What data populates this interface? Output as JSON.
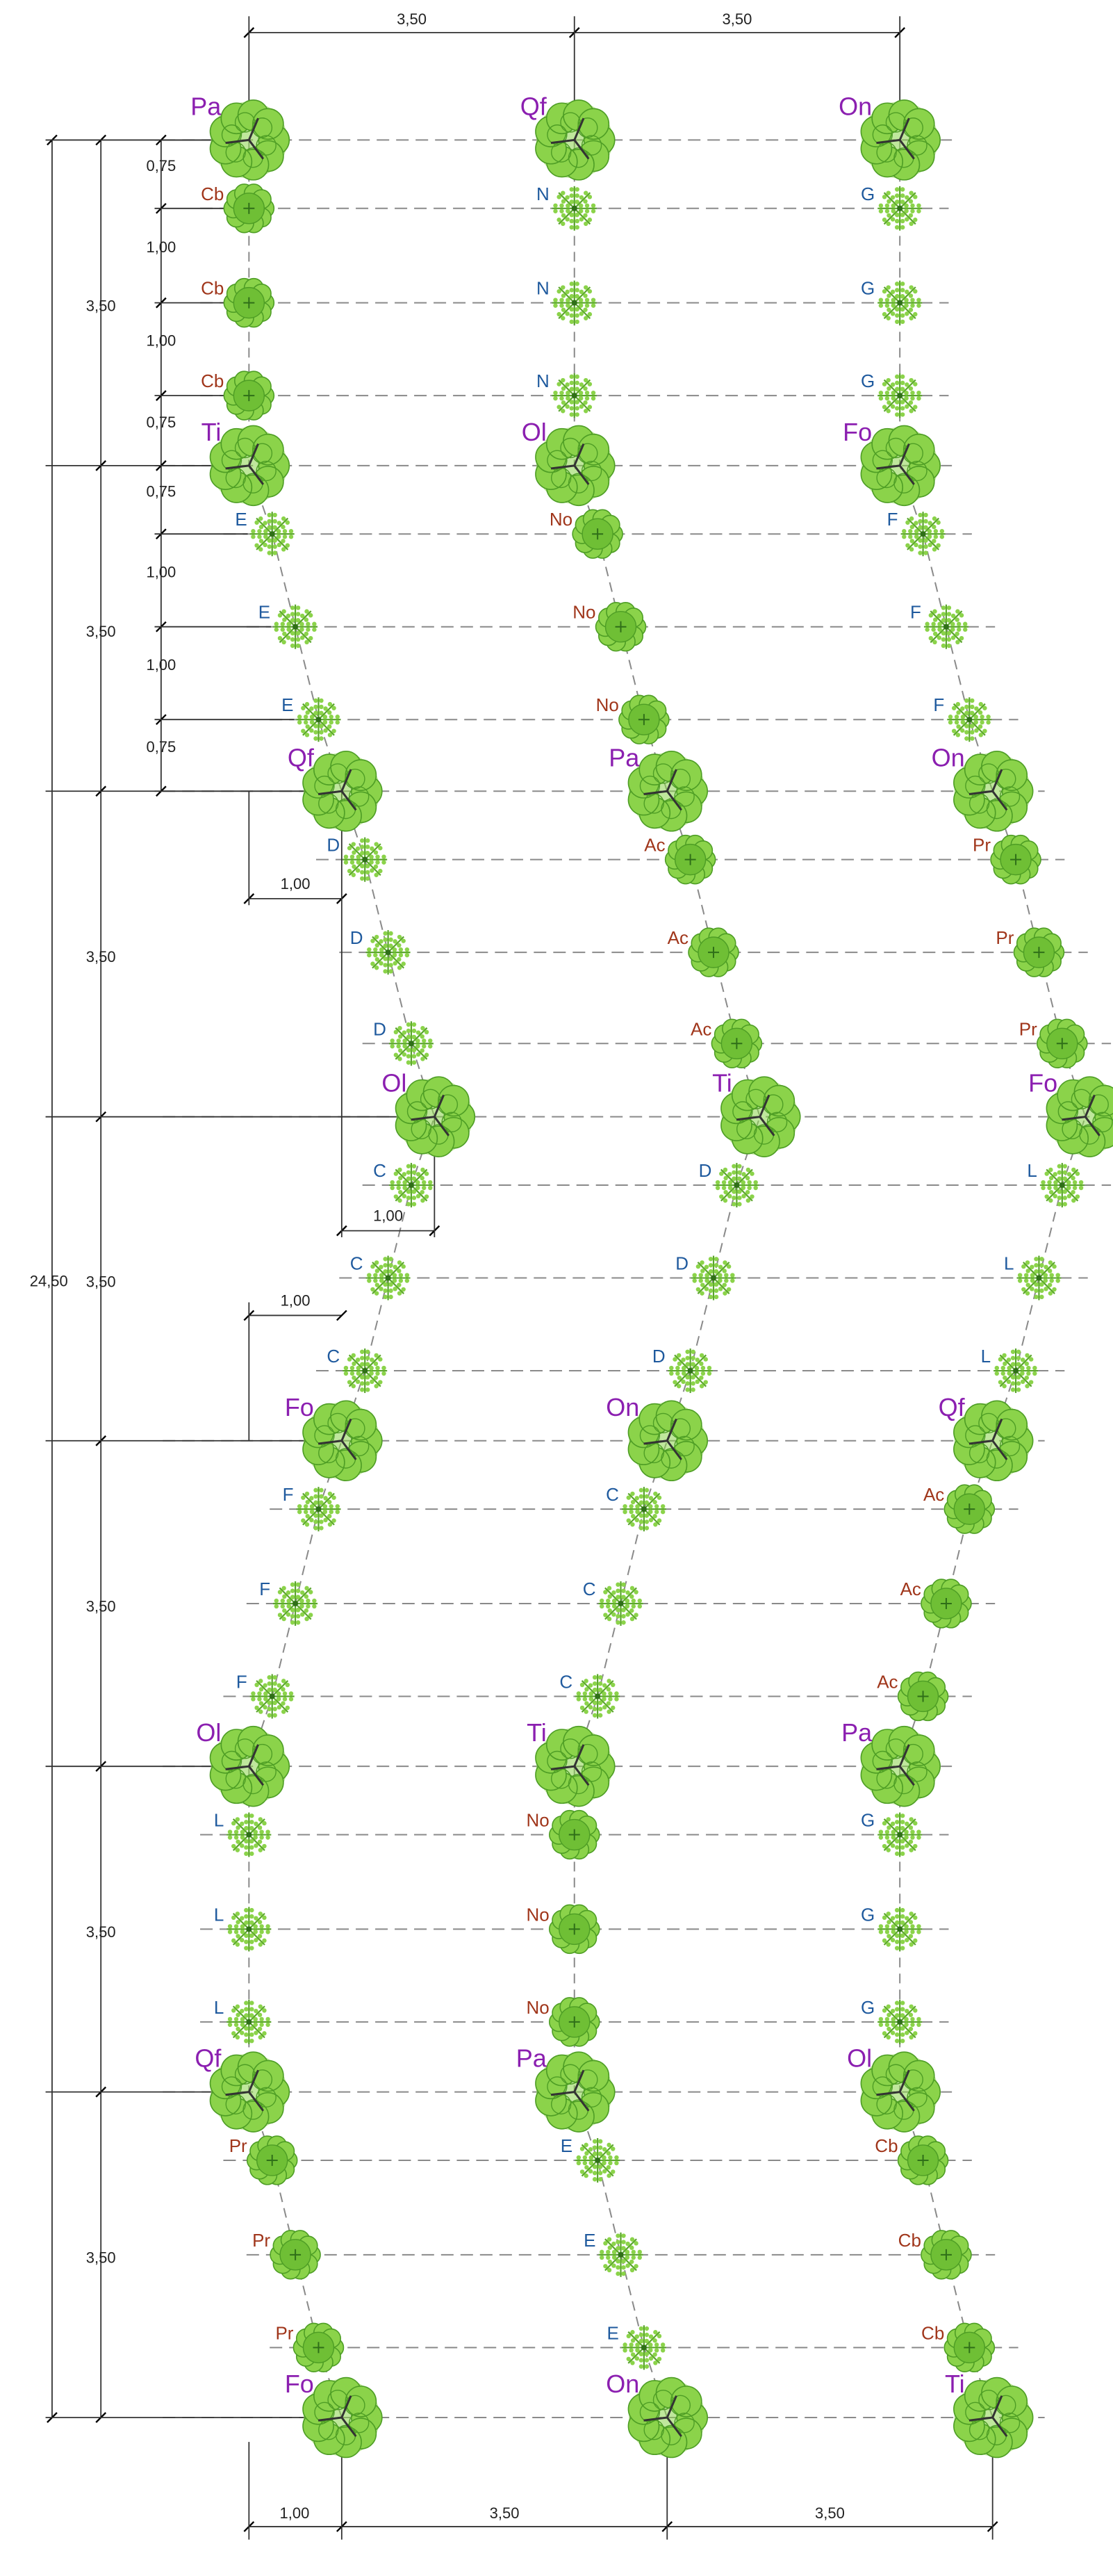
{
  "colors": {
    "big_label": "#8b1fb0",
    "small_blue": "#1f5a9e",
    "small_red": "#a0361b",
    "leaf": "#8bd34a",
    "leaf_dark": "#4e9e25",
    "dim": "#333333",
    "guide": "#8a8a8a"
  },
  "dimensions": {
    "top": [
      "3,50",
      "3,50"
    ],
    "bottom": [
      "1,00",
      "3,50",
      "3,50"
    ],
    "left_spacings": [
      "0,75",
      "1,00",
      "1,00",
      "0,75",
      "0,75",
      "1,00",
      "1,00",
      "0,75"
    ],
    "left_block": [
      "3,50",
      "3,50",
      "3,50",
      "3,50",
      "3,50",
      "3,50",
      "3,50"
    ],
    "total": "24,50",
    "offsets": [
      "1,00",
      "1,00",
      "1,00"
    ]
  },
  "rows": [
    {
      "type": "big",
      "labels": [
        "Pa",
        "Qf",
        "On"
      ]
    },
    {
      "type": "small",
      "labels": [
        "Cb",
        "N",
        "G"
      ],
      "kinds": [
        "round",
        "star",
        "star"
      ]
    },
    {
      "type": "small",
      "labels": [
        "Cb",
        "N",
        "G"
      ],
      "kinds": [
        "round",
        "star",
        "star"
      ]
    },
    {
      "type": "small",
      "labels": [
        "Cb",
        "N",
        "G"
      ],
      "kinds": [
        "round",
        "star",
        "star"
      ]
    },
    {
      "type": "big",
      "labels": [
        "Ti",
        "Ol",
        "Fo"
      ]
    },
    {
      "type": "small",
      "labels": [
        "E",
        "No",
        "F"
      ],
      "kinds": [
        "star",
        "round",
        "star"
      ]
    },
    {
      "type": "small",
      "labels": [
        "E",
        "No",
        "F"
      ],
      "kinds": [
        "star",
        "round",
        "star"
      ]
    },
    {
      "type": "small",
      "labels": [
        "E",
        "No",
        "F"
      ],
      "kinds": [
        "star",
        "round",
        "star"
      ]
    },
    {
      "type": "big",
      "labels": [
        "Qf",
        "Pa",
        "On"
      ]
    },
    {
      "type": "small",
      "labels": [
        "D",
        "Ac",
        "Pr"
      ],
      "kinds": [
        "star",
        "round",
        "round"
      ]
    },
    {
      "type": "small",
      "labels": [
        "D",
        "Ac",
        "Pr"
      ],
      "kinds": [
        "star",
        "round",
        "round"
      ]
    },
    {
      "type": "small",
      "labels": [
        "D",
        "Ac",
        "Pr"
      ],
      "kinds": [
        "star",
        "round",
        "round"
      ]
    },
    {
      "type": "big",
      "labels": [
        "Ol",
        "Ti",
        "Fo"
      ]
    },
    {
      "type": "small",
      "labels": [
        "C",
        "D",
        "L"
      ],
      "kinds": [
        "star",
        "star",
        "star"
      ]
    },
    {
      "type": "small",
      "labels": [
        "C",
        "D",
        "L"
      ],
      "kinds": [
        "star",
        "star",
        "star"
      ]
    },
    {
      "type": "small",
      "labels": [
        "C",
        "D",
        "L"
      ],
      "kinds": [
        "star",
        "star",
        "star"
      ]
    },
    {
      "type": "big",
      "labels": [
        "Fo",
        "On",
        "Qf"
      ]
    },
    {
      "type": "small",
      "labels": [
        "F",
        "C",
        "Ac"
      ],
      "kinds": [
        "star",
        "star",
        "round"
      ]
    },
    {
      "type": "small",
      "labels": [
        "F",
        "C",
        "Ac"
      ],
      "kinds": [
        "star",
        "star",
        "round"
      ]
    },
    {
      "type": "small",
      "labels": [
        "F",
        "C",
        "Ac"
      ],
      "kinds": [
        "star",
        "star",
        "round"
      ]
    },
    {
      "type": "big",
      "labels": [
        "Ol",
        "Ti",
        "Pa"
      ]
    },
    {
      "type": "small",
      "labels": [
        "L",
        "No",
        "G"
      ],
      "kinds": [
        "star",
        "round",
        "star"
      ]
    },
    {
      "type": "small",
      "labels": [
        "L",
        "No",
        "G"
      ],
      "kinds": [
        "star",
        "round",
        "star"
      ]
    },
    {
      "type": "small",
      "labels": [
        "L",
        "No",
        "G"
      ],
      "kinds": [
        "star",
        "round",
        "star"
      ]
    },
    {
      "type": "big",
      "labels": [
        "Qf",
        "Pa",
        "Ol"
      ]
    },
    {
      "type": "small",
      "labels": [
        "Pr",
        "E",
        "Cb"
      ],
      "kinds": [
        "round",
        "star",
        "round"
      ]
    },
    {
      "type": "small",
      "labels": [
        "Pr",
        "E",
        "Cb"
      ],
      "kinds": [
        "round",
        "star",
        "round"
      ]
    },
    {
      "type": "small",
      "labels": [
        "Pr",
        "E",
        "Cb"
      ],
      "kinds": [
        "round",
        "star",
        "round"
      ]
    },
    {
      "type": "big",
      "labels": [
        "Fo",
        "On",
        "Ti"
      ]
    }
  ]
}
